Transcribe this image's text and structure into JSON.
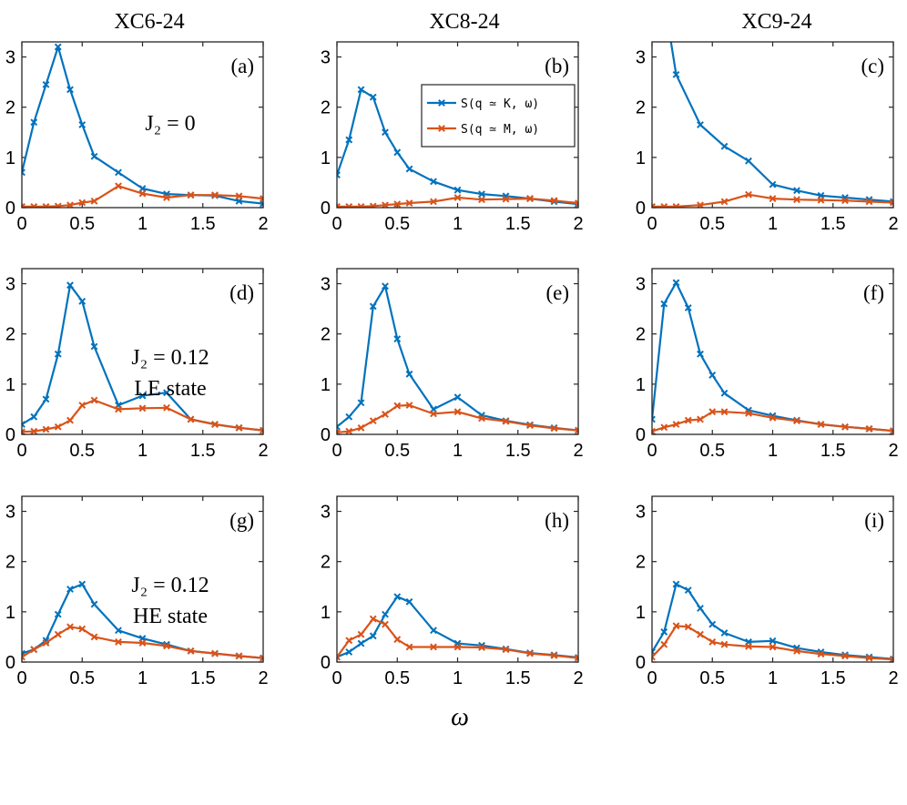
{
  "figure": {
    "column_titles": [
      "XC6-24",
      "XC8-24",
      "XC9-24"
    ],
    "x_axis_label": "ω",
    "colors": {
      "K": "#0072BD",
      "M": "#D95319"
    },
    "legend": {
      "entries": [
        "S(q ≃ K, ω)",
        "S(q ≃ M, ω)"
      ],
      "panel": 1
    },
    "annotations": [
      {
        "panel": 0,
        "lines": [
          "J₂ = 0"
        ]
      },
      {
        "panel": 3,
        "lines": [
          "J₂ = 0.12",
          "LE state"
        ]
      },
      {
        "panel": 6,
        "lines": [
          "J₂ = 0.12",
          "HE state"
        ]
      }
    ]
  },
  "chart_data": [
    {
      "type": "line",
      "label": "(a)",
      "xlim": [
        0,
        2
      ],
      "ylim": [
        0,
        3.3
      ],
      "xticks": [
        "0",
        "0.5",
        "1",
        "1.5",
        "2"
      ],
      "yticks": [
        "0",
        "1",
        "2",
        "3"
      ],
      "grid": false,
      "series": [
        {
          "x": [
            0,
            0.1,
            0.2,
            0.3,
            0.4,
            0.5,
            0.6,
            0.8,
            1.0,
            1.2,
            1.4,
            1.6,
            1.8,
            2.0
          ],
          "y": [
            0.7,
            1.7,
            2.45,
            3.2,
            2.35,
            1.65,
            1.02,
            0.7,
            0.38,
            0.27,
            0.25,
            0.24,
            0.13,
            0.08
          ]
        },
        {
          "x": [
            0,
            0.1,
            0.2,
            0.3,
            0.4,
            0.5,
            0.6,
            0.8,
            1.0,
            1.2,
            1.4,
            1.6,
            1.8,
            2.0
          ],
          "y": [
            0.02,
            0.02,
            0.02,
            0.03,
            0.05,
            0.1,
            0.13,
            0.43,
            0.28,
            0.2,
            0.25,
            0.25,
            0.23,
            0.18
          ]
        }
      ]
    },
    {
      "type": "line",
      "label": "(b)",
      "xlim": [
        0,
        2
      ],
      "ylim": [
        0,
        3.3
      ],
      "xticks": [
        "0",
        "0.5",
        "1",
        "1.5",
        "2"
      ],
      "yticks": [
        "0",
        "1",
        "2",
        "3"
      ],
      "grid": false,
      "series": [
        {
          "x": [
            0,
            0.1,
            0.2,
            0.3,
            0.4,
            0.5,
            0.6,
            0.8,
            1.0,
            1.2,
            1.4,
            1.6,
            1.8,
            2.0
          ],
          "y": [
            0.65,
            1.35,
            2.35,
            2.2,
            1.5,
            1.1,
            0.77,
            0.52,
            0.35,
            0.27,
            0.23,
            0.18,
            0.12,
            0.07
          ]
        },
        {
          "x": [
            0,
            0.1,
            0.2,
            0.3,
            0.4,
            0.5,
            0.6,
            0.8,
            1.0,
            1.2,
            1.4,
            1.6,
            1.8,
            2.0
          ],
          "y": [
            0.02,
            0.02,
            0.02,
            0.03,
            0.05,
            0.07,
            0.09,
            0.12,
            0.2,
            0.16,
            0.17,
            0.18,
            0.14,
            0.09
          ]
        }
      ]
    },
    {
      "type": "line",
      "label": "(c)",
      "xlim": [
        0,
        2
      ],
      "ylim": [
        0,
        3.3
      ],
      "xticks": [
        "0",
        "0.5",
        "1",
        "1.5",
        "2"
      ],
      "yticks": [
        "0",
        "1",
        "2",
        "3"
      ],
      "grid": false,
      "series": [
        {
          "x": [
            0.15,
            0.2,
            0.4,
            0.6,
            0.8,
            1.0,
            1.2,
            1.4,
            1.6,
            1.8,
            2.0
          ],
          "y": [
            3.4,
            2.65,
            1.65,
            1.22,
            0.93,
            0.46,
            0.34,
            0.24,
            0.2,
            0.16,
            0.12
          ]
        },
        {
          "x": [
            0,
            0.1,
            0.2,
            0.4,
            0.6,
            0.8,
            1.0,
            1.2,
            1.4,
            1.6,
            1.8,
            2.0
          ],
          "y": [
            0.02,
            0.02,
            0.02,
            0.05,
            0.12,
            0.26,
            0.18,
            0.16,
            0.15,
            0.14,
            0.12,
            0.1
          ]
        }
      ]
    },
    {
      "type": "line",
      "label": "(d)",
      "xlim": [
        0,
        2
      ],
      "ylim": [
        0,
        3.3
      ],
      "xticks": [
        "0",
        "0.5",
        "1",
        "1.5",
        "2"
      ],
      "yticks": [
        "0",
        "1",
        "2",
        "3"
      ],
      "grid": false,
      "series": [
        {
          "x": [
            0,
            0.1,
            0.2,
            0.3,
            0.4,
            0.5,
            0.6,
            0.8,
            1.0,
            1.2,
            1.4,
            1.6,
            1.8,
            2.0
          ],
          "y": [
            0.2,
            0.35,
            0.7,
            1.6,
            2.97,
            2.65,
            1.75,
            0.58,
            0.77,
            0.83,
            0.3,
            0.2,
            0.13,
            0.08
          ]
        },
        {
          "x": [
            0,
            0.1,
            0.2,
            0.3,
            0.4,
            0.5,
            0.6,
            0.8,
            1.0,
            1.2,
            1.4,
            1.6,
            1.8,
            2.0
          ],
          "y": [
            0.05,
            0.06,
            0.1,
            0.15,
            0.28,
            0.58,
            0.68,
            0.5,
            0.52,
            0.53,
            0.3,
            0.2,
            0.13,
            0.08
          ]
        }
      ]
    },
    {
      "type": "line",
      "label": "(e)",
      "xlim": [
        0,
        2
      ],
      "ylim": [
        0,
        3.3
      ],
      "xticks": [
        "0",
        "0.5",
        "1",
        "1.5",
        "2"
      ],
      "yticks": [
        "0",
        "1",
        "2",
        "3"
      ],
      "grid": false,
      "series": [
        {
          "x": [
            0,
            0.1,
            0.2,
            0.3,
            0.4,
            0.5,
            0.6,
            0.8,
            1.0,
            1.2,
            1.4,
            1.6,
            1.8,
            2.0
          ],
          "y": [
            0.15,
            0.35,
            0.63,
            2.55,
            2.95,
            1.9,
            1.2,
            0.5,
            0.74,
            0.38,
            0.27,
            0.19,
            0.13,
            0.08
          ]
        },
        {
          "x": [
            0,
            0.1,
            0.2,
            0.3,
            0.4,
            0.5,
            0.6,
            0.8,
            1.0,
            1.2,
            1.4,
            1.6,
            1.8,
            2.0
          ],
          "y": [
            0.04,
            0.06,
            0.13,
            0.27,
            0.4,
            0.57,
            0.58,
            0.41,
            0.45,
            0.32,
            0.26,
            0.18,
            0.12,
            0.08
          ]
        }
      ]
    },
    {
      "type": "line",
      "label": "(f)",
      "xlim": [
        0,
        2
      ],
      "ylim": [
        0,
        3.3
      ],
      "xticks": [
        "0",
        "0.5",
        "1",
        "1.5",
        "2"
      ],
      "yticks": [
        "0",
        "1",
        "2",
        "3"
      ],
      "grid": false,
      "series": [
        {
          "x": [
            0,
            0.1,
            0.2,
            0.3,
            0.4,
            0.5,
            0.6,
            0.8,
            1.0,
            1.2,
            1.4,
            1.6,
            1.8,
            2.0
          ],
          "y": [
            0.3,
            2.6,
            3.02,
            2.52,
            1.6,
            1.18,
            0.82,
            0.48,
            0.37,
            0.28,
            0.2,
            0.15,
            0.11,
            0.07
          ]
        },
        {
          "x": [
            0,
            0.1,
            0.2,
            0.3,
            0.4,
            0.5,
            0.6,
            0.8,
            1.0,
            1.2,
            1.4,
            1.6,
            1.8,
            2.0
          ],
          "y": [
            0.06,
            0.14,
            0.2,
            0.28,
            0.3,
            0.45,
            0.45,
            0.42,
            0.33,
            0.27,
            0.2,
            0.15,
            0.11,
            0.07
          ]
        }
      ]
    },
    {
      "type": "line",
      "label": "(g)",
      "xlim": [
        0,
        2
      ],
      "ylim": [
        0,
        3.3
      ],
      "xticks": [
        "0",
        "0.5",
        "1",
        "1.5",
        "2"
      ],
      "yticks": [
        "0",
        "1",
        "2",
        "3"
      ],
      "grid": false,
      "series": [
        {
          "x": [
            0,
            0.1,
            0.2,
            0.3,
            0.4,
            0.5,
            0.6,
            0.8,
            1.0,
            1.2,
            1.4,
            1.6,
            1.8,
            2.0
          ],
          "y": [
            0.17,
            0.25,
            0.43,
            0.95,
            1.45,
            1.55,
            1.15,
            0.63,
            0.47,
            0.35,
            0.22,
            0.17,
            0.12,
            0.08
          ]
        },
        {
          "x": [
            0,
            0.1,
            0.2,
            0.3,
            0.4,
            0.5,
            0.6,
            0.8,
            1.0,
            1.2,
            1.4,
            1.6,
            1.8,
            2.0
          ],
          "y": [
            0.1,
            0.25,
            0.38,
            0.55,
            0.7,
            0.66,
            0.5,
            0.4,
            0.38,
            0.32,
            0.22,
            0.17,
            0.12,
            0.08
          ]
        }
      ]
    },
    {
      "type": "line",
      "label": "(h)",
      "xlim": [
        0,
        2
      ],
      "ylim": [
        0,
        3.3
      ],
      "xticks": [
        "0",
        "0.5",
        "1",
        "1.5",
        "2"
      ],
      "yticks": [
        "0",
        "1",
        "2",
        "3"
      ],
      "grid": false,
      "series": [
        {
          "x": [
            0,
            0.1,
            0.2,
            0.3,
            0.4,
            0.5,
            0.6,
            0.8,
            1.0,
            1.2,
            1.4,
            1.6,
            1.8,
            2.0
          ],
          "y": [
            0.1,
            0.2,
            0.37,
            0.52,
            0.95,
            1.3,
            1.2,
            0.63,
            0.37,
            0.33,
            0.26,
            0.18,
            0.14,
            0.09
          ]
        },
        {
          "x": [
            0,
            0.1,
            0.2,
            0.3,
            0.4,
            0.5,
            0.6,
            0.8,
            1.0,
            1.2,
            1.4,
            1.6,
            1.8,
            2.0
          ],
          "y": [
            0.1,
            0.43,
            0.55,
            0.86,
            0.75,
            0.45,
            0.3,
            0.3,
            0.3,
            0.29,
            0.25,
            0.17,
            0.13,
            0.08
          ]
        }
      ]
    },
    {
      "type": "line",
      "label": "(i)",
      "xlim": [
        0,
        2
      ],
      "ylim": [
        0,
        3.3
      ],
      "xticks": [
        "0",
        "0.5",
        "1",
        "1.5",
        "2"
      ],
      "yticks": [
        "0",
        "1",
        "2",
        "3"
      ],
      "grid": false,
      "series": [
        {
          "x": [
            0,
            0.1,
            0.2,
            0.3,
            0.4,
            0.5,
            0.6,
            0.8,
            1.0,
            1.2,
            1.4,
            1.6,
            1.8,
            2.0
          ],
          "y": [
            0.2,
            0.6,
            1.55,
            1.43,
            1.07,
            0.75,
            0.58,
            0.4,
            0.42,
            0.28,
            0.2,
            0.14,
            0.1,
            0.06
          ]
        },
        {
          "x": [
            0,
            0.1,
            0.2,
            0.3,
            0.4,
            0.5,
            0.6,
            0.8,
            1.0,
            1.2,
            1.4,
            1.6,
            1.8,
            2.0
          ],
          "y": [
            0.1,
            0.35,
            0.72,
            0.7,
            0.55,
            0.4,
            0.35,
            0.31,
            0.3,
            0.22,
            0.16,
            0.12,
            0.08,
            0.05
          ]
        }
      ]
    }
  ]
}
